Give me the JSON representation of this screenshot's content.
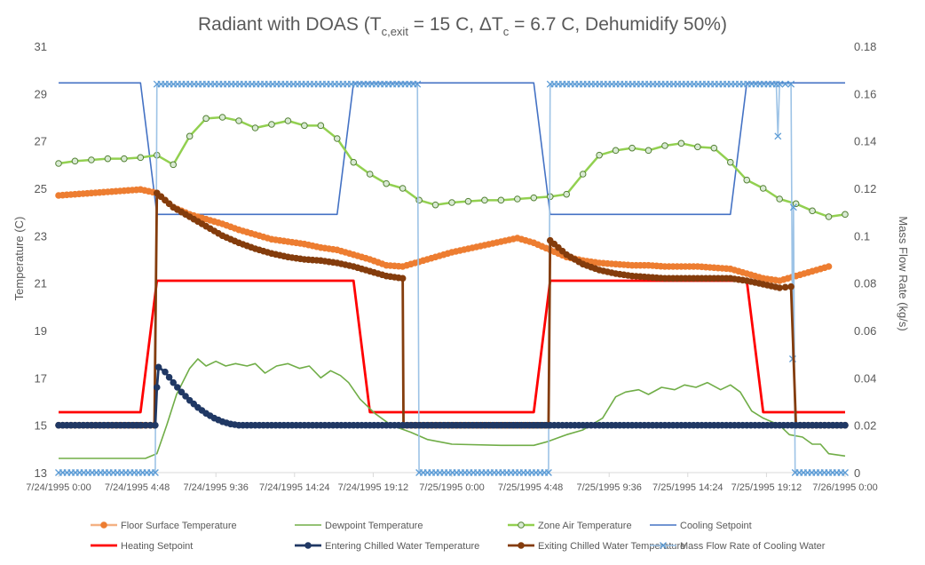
{
  "chart_data": {
    "type": "line",
    "title": "Radiant with DOAS (T",
    "title_sub1": "c,exit",
    "title_mid": " = 15 C, ΔT",
    "title_sub2": "c",
    "title_end": " = 6.7 C, Dehumidify 50%)",
    "ylabel": "Temperature (C)",
    "y2label": "Mass Flow Rate (kg/s)",
    "ylim": [
      13,
      31
    ],
    "y2lim": [
      0,
      0.18
    ],
    "xlim": [
      0,
      48
    ],
    "grid": false,
    "legend_position": "bottom",
    "yticks": [
      "13",
      "15",
      "17",
      "19",
      "21",
      "23",
      "25",
      "27",
      "29",
      "31"
    ],
    "y2ticks": [
      "0",
      "0.02",
      "0.04",
      "0.06",
      "0.08",
      "0.1",
      "0.12",
      "0.14",
      "0.16",
      "0.18"
    ],
    "xticks": [
      {
        "x": 0,
        "label": "7/24/1995 0:00"
      },
      {
        "x": 4.8,
        "label": "7/24/1995 4:48"
      },
      {
        "x": 9.6,
        "label": "7/24/1995 9:36"
      },
      {
        "x": 14.4,
        "label": "7/24/1995 14:24"
      },
      {
        "x": 19.2,
        "label": "7/24/1995 19:12"
      },
      {
        "x": 24,
        "label": "7/25/1995 0:00"
      },
      {
        "x": 28.8,
        "label": "7/25/1995 4:48"
      },
      {
        "x": 33.6,
        "label": "7/25/1995 9:36"
      },
      {
        "x": 38.4,
        "label": "7/25/1995 14:24"
      },
      {
        "x": 43.2,
        "label": "7/25/1995 19:12"
      },
      {
        "x": 48,
        "label": "7/26/1995 0:00"
      }
    ],
    "series": [
      {
        "name": "Floor Surface Temperature",
        "axis": "left",
        "color": "#F4B183",
        "marker": "dot",
        "marker_color": "#ED7D31",
        "points": [
          [
            0,
            24.7
          ],
          [
            1,
            24.75
          ],
          [
            2,
            24.8
          ],
          [
            3,
            24.85
          ],
          [
            4,
            24.9
          ],
          [
            5,
            24.95
          ],
          [
            6,
            24.8
          ],
          [
            7,
            24.2
          ],
          [
            8,
            23.9
          ],
          [
            9,
            23.7
          ],
          [
            10,
            23.5
          ],
          [
            11,
            23.25
          ],
          [
            12,
            23.05
          ],
          [
            13,
            22.85
          ],
          [
            14,
            22.75
          ],
          [
            15,
            22.65
          ],
          [
            16,
            22.5
          ],
          [
            17,
            22.4
          ],
          [
            18,
            22.2
          ],
          [
            19,
            22.0
          ],
          [
            20,
            21.75
          ],
          [
            21,
            21.7
          ],
          [
            22,
            21.9
          ],
          [
            23,
            22.1
          ],
          [
            24,
            22.3
          ],
          [
            25,
            22.45
          ],
          [
            26,
            22.6
          ],
          [
            27,
            22.75
          ],
          [
            28,
            22.9
          ],
          [
            29,
            22.7
          ],
          [
            30,
            22.4
          ],
          [
            31,
            22.1
          ],
          [
            32,
            21.95
          ],
          [
            33,
            21.85
          ],
          [
            34,
            21.8
          ],
          [
            35,
            21.75
          ],
          [
            36,
            21.75
          ],
          [
            37,
            21.7
          ],
          [
            38,
            21.7
          ],
          [
            39,
            21.7
          ],
          [
            40,
            21.65
          ],
          [
            41,
            21.6
          ],
          [
            42,
            21.4
          ],
          [
            43,
            21.2
          ],
          [
            44,
            21.1
          ],
          [
            45,
            21.3
          ],
          [
            46,
            21.5
          ],
          [
            47,
            21.7
          ]
        ]
      },
      {
        "name": "Dewpoint Temperature",
        "axis": "left",
        "color": "#70AD47",
        "marker": "none",
        "points": [
          [
            0,
            13.6
          ],
          [
            3,
            13.6
          ],
          [
            5.3,
            13.6
          ],
          [
            6,
            13.8
          ],
          [
            6.6,
            15.0
          ],
          [
            7.2,
            16.3
          ],
          [
            8,
            17.4
          ],
          [
            8.5,
            17.8
          ],
          [
            9,
            17.5
          ],
          [
            9.6,
            17.7
          ],
          [
            10.2,
            17.5
          ],
          [
            10.8,
            17.6
          ],
          [
            11.5,
            17.5
          ],
          [
            12,
            17.6
          ],
          [
            12.6,
            17.2
          ],
          [
            13.3,
            17.5
          ],
          [
            14,
            17.6
          ],
          [
            14.7,
            17.4
          ],
          [
            15.3,
            17.5
          ],
          [
            16,
            17.0
          ],
          [
            16.6,
            17.3
          ],
          [
            17.2,
            17.1
          ],
          [
            17.7,
            16.8
          ],
          [
            18.4,
            16.1
          ],
          [
            19.3,
            15.5
          ],
          [
            20.3,
            15.0
          ],
          [
            21.5,
            14.7
          ],
          [
            22.5,
            14.4
          ],
          [
            24,
            14.2
          ],
          [
            27,
            14.15
          ],
          [
            29,
            14.15
          ],
          [
            29.8,
            14.3
          ],
          [
            31,
            14.6
          ],
          [
            32,
            14.8
          ],
          [
            33.2,
            15.3
          ],
          [
            34,
            16.2
          ],
          [
            34.6,
            16.4
          ],
          [
            35.4,
            16.5
          ],
          [
            36,
            16.3
          ],
          [
            36.8,
            16.6
          ],
          [
            37.6,
            16.5
          ],
          [
            38.2,
            16.7
          ],
          [
            38.9,
            16.6
          ],
          [
            39.6,
            16.8
          ],
          [
            40.4,
            16.5
          ],
          [
            41,
            16.7
          ],
          [
            41.6,
            16.4
          ],
          [
            42.3,
            15.6
          ],
          [
            43,
            15.3
          ],
          [
            44,
            15.0
          ],
          [
            44.6,
            14.6
          ],
          [
            45.4,
            14.5
          ],
          [
            46,
            14.2
          ],
          [
            46.5,
            14.2
          ],
          [
            47,
            13.8
          ],
          [
            48,
            13.7
          ]
        ]
      },
      {
        "name": "Zone Air Temperature",
        "axis": "left",
        "color": "#92D050",
        "marker": "circle",
        "marker_color": "#548235",
        "points": [
          [
            0,
            26.05
          ],
          [
            1,
            26.15
          ],
          [
            2,
            26.2
          ],
          [
            3,
            26.25
          ],
          [
            4,
            26.25
          ],
          [
            5,
            26.3
          ],
          [
            6,
            26.4
          ],
          [
            7,
            26.0
          ],
          [
            8,
            27.2
          ],
          [
            9,
            27.95
          ],
          [
            10,
            28.0
          ],
          [
            11,
            27.85
          ],
          [
            12,
            27.55
          ],
          [
            13,
            27.7
          ],
          [
            14,
            27.85
          ],
          [
            15,
            27.65
          ],
          [
            16,
            27.65
          ],
          [
            17,
            27.1
          ],
          [
            18,
            26.1
          ],
          [
            19,
            25.6
          ],
          [
            20,
            25.2
          ],
          [
            21,
            25.0
          ],
          [
            22,
            24.5
          ],
          [
            23,
            24.3
          ],
          [
            24,
            24.4
          ],
          [
            25,
            24.45
          ],
          [
            26,
            24.5
          ],
          [
            27,
            24.5
          ],
          [
            28,
            24.55
          ],
          [
            29,
            24.6
          ],
          [
            30,
            24.65
          ],
          [
            31,
            24.75
          ],
          [
            32,
            25.6
          ],
          [
            33,
            26.4
          ],
          [
            34,
            26.6
          ],
          [
            35,
            26.7
          ],
          [
            36,
            26.6
          ],
          [
            37,
            26.8
          ],
          [
            38,
            26.9
          ],
          [
            39,
            26.75
          ],
          [
            40,
            26.7
          ],
          [
            41,
            26.1
          ],
          [
            42,
            25.35
          ],
          [
            43,
            25.0
          ],
          [
            44,
            24.55
          ],
          [
            45,
            24.35
          ],
          [
            46,
            24.05
          ],
          [
            47,
            23.8
          ],
          [
            48,
            23.9
          ]
        ]
      },
      {
        "name": "Cooling Setpoint",
        "axis": "left",
        "color": "#4472C4",
        "marker": "none",
        "points": [
          [
            0,
            29.45
          ],
          [
            5,
            29.45
          ],
          [
            6,
            23.9
          ],
          [
            17,
            23.9
          ],
          [
            18,
            29.45
          ],
          [
            29,
            29.45
          ],
          [
            30,
            23.9
          ],
          [
            41,
            23.9
          ],
          [
            42,
            29.45
          ],
          [
            48,
            29.45
          ]
        ]
      },
      {
        "name": "Heating Setpoint",
        "axis": "left",
        "color": "#FF0000",
        "marker": "none",
        "points": [
          [
            0,
            15.55
          ],
          [
            5,
            15.55
          ],
          [
            6,
            21.1
          ],
          [
            18,
            21.1
          ],
          [
            19,
            15.55
          ],
          [
            29,
            15.55
          ],
          [
            30,
            21.1
          ],
          [
            42,
            21.1
          ],
          [
            43,
            15.55
          ],
          [
            48,
            15.55
          ]
        ]
      },
      {
        "name": "Entering Chilled Water Temperature",
        "axis": "left",
        "color": "#203864",
        "marker": "dot",
        "marker_color": "#203864",
        "points": [
          [
            0,
            15.0
          ],
          [
            5,
            15.0
          ],
          [
            5.9,
            15.0
          ],
          [
            6.0,
            16.6
          ],
          [
            6.1,
            17.45
          ],
          [
            6.5,
            17.25
          ],
          [
            7,
            16.8
          ],
          [
            7.5,
            16.4
          ],
          [
            8,
            16.05
          ],
          [
            8.5,
            15.75
          ],
          [
            9,
            15.5
          ],
          [
            9.5,
            15.3
          ],
          [
            10,
            15.15
          ],
          [
            10.5,
            15.05
          ],
          [
            11,
            15.0
          ],
          [
            48,
            15.0
          ]
        ]
      },
      {
        "name": "Exiting Chilled Water Temperature",
        "axis": "left",
        "color": "#843C0C",
        "marker": "dot",
        "marker_color": "#843C0C",
        "points": [
          [
            0,
            15.0
          ],
          [
            5.85,
            15.0
          ],
          [
            6.0,
            24.8
          ],
          [
            6.5,
            24.5
          ],
          [
            7,
            24.2
          ],
          [
            8,
            23.8
          ],
          [
            9,
            23.4
          ],
          [
            10,
            23.0
          ],
          [
            11,
            22.7
          ],
          [
            12,
            22.45
          ],
          [
            13,
            22.25
          ],
          [
            14,
            22.1
          ],
          [
            15,
            22.0
          ],
          [
            16,
            21.95
          ],
          [
            17,
            21.85
          ],
          [
            18,
            21.7
          ],
          [
            19,
            21.5
          ],
          [
            20,
            21.3
          ],
          [
            21,
            21.2
          ],
          [
            21.05,
            15.0
          ],
          [
            29.9,
            15.0
          ],
          [
            30.0,
            22.8
          ],
          [
            30.5,
            22.5
          ],
          [
            31,
            22.2
          ],
          [
            32,
            21.8
          ],
          [
            33,
            21.55
          ],
          [
            34,
            21.4
          ],
          [
            35,
            21.3
          ],
          [
            36,
            21.25
          ],
          [
            37,
            21.2
          ],
          [
            38,
            21.2
          ],
          [
            39,
            21.2
          ],
          [
            40,
            21.2
          ],
          [
            41,
            21.2
          ],
          [
            42,
            21.1
          ],
          [
            43,
            20.95
          ],
          [
            44,
            20.8
          ],
          [
            44.7,
            20.85
          ],
          [
            45,
            15.0
          ],
          [
            48,
            15.0
          ]
        ]
      },
      {
        "name": "Mass Flow Rate of Cooling Water",
        "axis": "right",
        "color": "#9DC3E6",
        "marker": "x",
        "marker_color": "#5B9BD5",
        "points": [
          [
            0,
            0.0
          ],
          [
            5.9,
            0.0
          ],
          [
            6.0,
            0.164
          ],
          [
            21.9,
            0.164
          ],
          [
            22.0,
            0.0
          ],
          [
            29.9,
            0.0
          ],
          [
            30.0,
            0.164
          ],
          [
            43.8,
            0.164
          ],
          [
            43.9,
            0.142
          ],
          [
            44.0,
            0.164
          ],
          [
            44.7,
            0.164
          ],
          [
            44.8,
            0.048
          ],
          [
            44.85,
            0.112
          ],
          [
            44.95,
            0.0
          ],
          [
            48,
            0.0
          ]
        ]
      }
    ]
  }
}
